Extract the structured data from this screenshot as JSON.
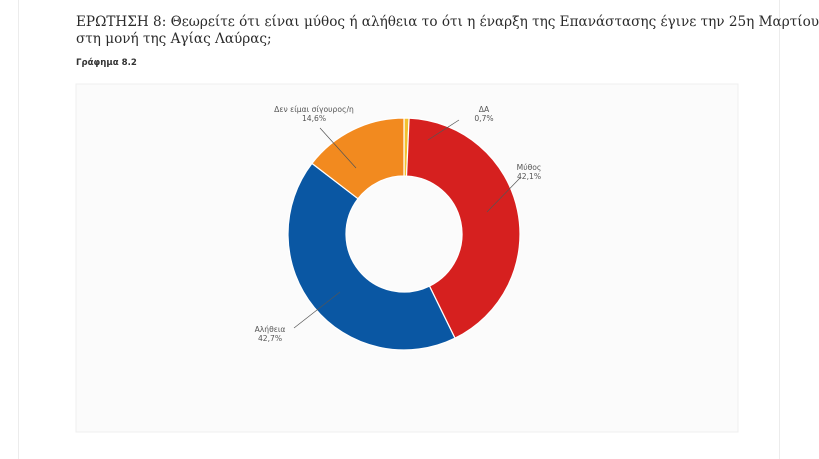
{
  "question": {
    "line1": "ΕΡΩΤΗΣΗ 8: Θεωρείτε ότι είναι μύθος ή αλήθεια το ότι η έναρξη της Επανάστασης έγινε την 25η Μαρτίου",
    "line2": "στη μονή της Αγίας Λαύρας;"
  },
  "figure_label": "Γράφημα 8.2",
  "chart_data": {
    "type": "pie",
    "variant": "donut",
    "title": "",
    "legend": "none",
    "slices": [
      {
        "label": "ΔΑ",
        "value": 0.7,
        "value_text": "0,7%",
        "color": "#f3c130"
      },
      {
        "label": "Μύθος",
        "value": 42.1,
        "value_text": "42,1%",
        "color": "#d6201f"
      },
      {
        "label": "Αλήθεια",
        "value": 42.7,
        "value_text": "42,7%",
        "color": "#0a57a3"
      },
      {
        "label": "Δεν είμαι σίγουρος/η",
        "value": 14.6,
        "value_text": "14,6%",
        "color": "#f28a1f"
      }
    ]
  }
}
